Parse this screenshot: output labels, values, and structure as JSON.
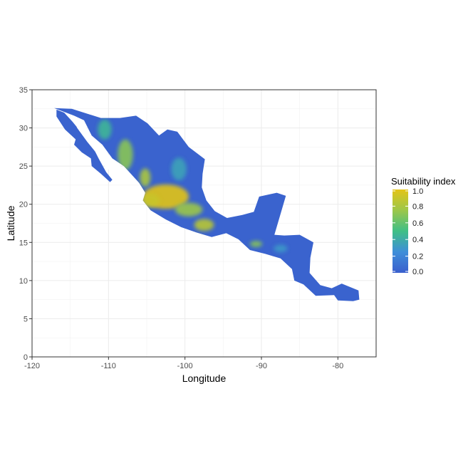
{
  "chart_data": {
    "type": "heatmap",
    "title": "",
    "xlabel": "Longitude",
    "ylabel": "Latitude",
    "xlim": [
      -120,
      -75
    ],
    "ylim": [
      0,
      35
    ],
    "x_ticks": [
      -120,
      -110,
      -100,
      -90,
      -80
    ],
    "y_ticks": [
      0,
      5,
      10,
      15,
      20,
      25,
      30,
      35
    ],
    "x_tick_labels": [
      "-120",
      "-110",
      "-100",
      "-90",
      "-80"
    ],
    "y_tick_labels": [
      "0",
      "5",
      "10",
      "15",
      "20",
      "25",
      "30",
      "35"
    ],
    "grid": true,
    "legend": {
      "title": "Suitability index",
      "placement": "right",
      "range": [
        0,
        1
      ],
      "ticks": [
        "1.0",
        "0.8",
        "0.6",
        "0.4",
        "0.2",
        "0.0"
      ],
      "colors": [
        "#3a5fcd",
        "#3e8ed9",
        "#3fbf86",
        "#9cc74a",
        "#e3c417"
      ]
    },
    "regions": {
      "land_outline": [
        [
          -117.1,
          32.6
        ],
        [
          -114.8,
          32.5
        ],
        [
          -111.0,
          31.3
        ],
        [
          -108.5,
          31.3
        ],
        [
          -106.4,
          31.6
        ],
        [
          -104.9,
          30.6
        ],
        [
          -103.4,
          29.0
        ],
        [
          -102.3,
          29.8
        ],
        [
          -101.0,
          29.5
        ],
        [
          -99.5,
          27.5
        ],
        [
          -97.4,
          25.9
        ],
        [
          -97.7,
          24.0
        ],
        [
          -97.8,
          22.2
        ],
        [
          -97.2,
          20.5
        ],
        [
          -96.1,
          19.1
        ],
        [
          -94.5,
          18.2
        ],
        [
          -92.5,
          18.6
        ],
        [
          -91.0,
          19.0
        ],
        [
          -90.3,
          21.0
        ],
        [
          -88.0,
          21.5
        ],
        [
          -86.8,
          21.1
        ],
        [
          -87.6,
          18.4
        ],
        [
          -88.3,
          16.0
        ],
        [
          -87.0,
          15.9
        ],
        [
          -85.0,
          16.0
        ],
        [
          -83.2,
          15.0
        ],
        [
          -83.6,
          13.0
        ],
        [
          -83.7,
          11.0
        ],
        [
          -82.3,
          9.4
        ],
        [
          -80.8,
          9.0
        ],
        [
          -79.5,
          9.6
        ],
        [
          -77.3,
          8.7
        ],
        [
          -77.2,
          7.5
        ],
        [
          -78.0,
          7.3
        ],
        [
          -80.0,
          7.4
        ],
        [
          -80.5,
          8.1
        ],
        [
          -82.9,
          8.0
        ],
        [
          -84.5,
          9.5
        ],
        [
          -85.7,
          10.0
        ],
        [
          -86.0,
          11.5
        ],
        [
          -87.5,
          12.9
        ],
        [
          -89.5,
          13.5
        ],
        [
          -91.5,
          14.0
        ],
        [
          -93.0,
          15.4
        ],
        [
          -94.6,
          16.2
        ],
        [
          -96.5,
          15.7
        ],
        [
          -98.5,
          16.3
        ],
        [
          -100.5,
          17.0
        ],
        [
          -102.5,
          18.0
        ],
        [
          -104.5,
          19.2
        ],
        [
          -105.5,
          20.5
        ],
        [
          -105.2,
          21.5
        ],
        [
          -106.0,
          22.8
        ],
        [
          -108.0,
          25.0
        ],
        [
          -109.5,
          26.0
        ],
        [
          -110.8,
          27.8
        ],
        [
          -112.2,
          29.0
        ],
        [
          -113.2,
          31.0
        ],
        [
          -114.5,
          31.6
        ],
        [
          -117.1,
          32.6
        ]
      ],
      "baja_outline": [
        [
          -116.8,
          32.4
        ],
        [
          -115.8,
          32.0
        ],
        [
          -114.7,
          30.8
        ],
        [
          -113.4,
          29.2
        ],
        [
          -112.2,
          27.8
        ],
        [
          -111.3,
          26.0
        ],
        [
          -110.3,
          24.2
        ],
        [
          -109.5,
          23.2
        ],
        [
          -109.8,
          22.9
        ],
        [
          -111.0,
          24.0
        ],
        [
          -112.2,
          25.0
        ],
        [
          -112.3,
          26.0
        ],
        [
          -113.5,
          26.8
        ],
        [
          -114.5,
          27.8
        ],
        [
          -114.3,
          28.5
        ],
        [
          -115.7,
          29.8
        ],
        [
          -116.8,
          31.5
        ]
      ],
      "gulf_mask": [
        [
          -114.7,
          31.4
        ],
        [
          -113.5,
          30.9
        ],
        [
          -112.2,
          28.9
        ],
        [
          -110.7,
          27.5
        ],
        [
          -109.6,
          25.9
        ],
        [
          -108.2,
          24.8
        ],
        [
          -109.4,
          24.0
        ],
        [
          -110.4,
          24.9
        ],
        [
          -111.5,
          26.6
        ],
        [
          -112.8,
          28.2
        ],
        [
          -114.1,
          30.0
        ]
      ],
      "hotspots": [
        {
          "lon": -102.5,
          "lat": 21.0,
          "rx": 3.0,
          "ry": 1.6,
          "value": 1.0
        },
        {
          "lon": -104.5,
          "lat": 20.5,
          "rx": 1.2,
          "ry": 0.9,
          "value": 0.9
        },
        {
          "lon": -99.5,
          "lat": 19.3,
          "rx": 1.8,
          "ry": 0.9,
          "value": 0.75
        },
        {
          "lon": -97.5,
          "lat": 17.3,
          "rx": 1.3,
          "ry": 0.8,
          "value": 0.85
        },
        {
          "lon": -107.8,
          "lat": 26.5,
          "rx": 1.0,
          "ry": 2.0,
          "value": 0.7
        },
        {
          "lon": -105.2,
          "lat": 23.5,
          "rx": 0.7,
          "ry": 1.2,
          "value": 0.8
        },
        {
          "lon": -110.5,
          "lat": 29.8,
          "rx": 0.9,
          "ry": 1.3,
          "value": 0.45
        },
        {
          "lon": -100.8,
          "lat": 24.6,
          "rx": 1.0,
          "ry": 1.5,
          "value": 0.35
        },
        {
          "lon": -90.7,
          "lat": 14.8,
          "rx": 0.8,
          "ry": 0.4,
          "value": 0.7
        },
        {
          "lon": -87.5,
          "lat": 14.2,
          "rx": 0.9,
          "ry": 0.5,
          "value": 0.3
        }
      ]
    }
  }
}
